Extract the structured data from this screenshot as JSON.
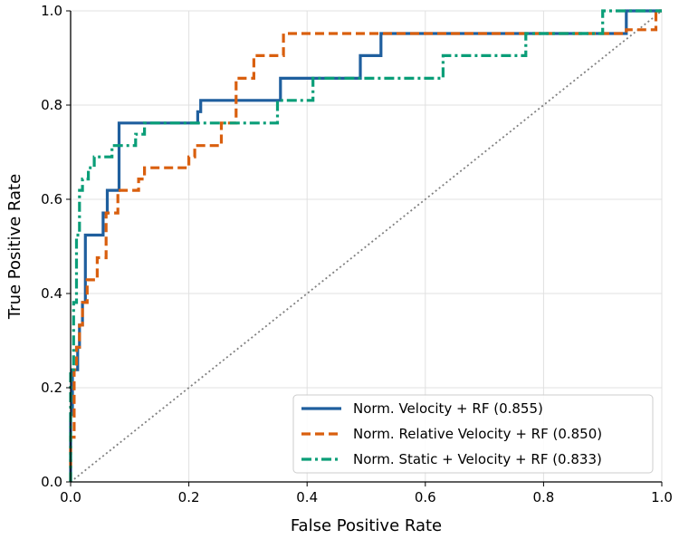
{
  "chart_data": {
    "type": "line",
    "xlabel": "False Positive Rate",
    "ylabel": "True Positive Rate",
    "xlim": [
      0,
      1
    ],
    "ylim": [
      0,
      1
    ],
    "xticks": [
      "0.0",
      "0.2",
      "0.4",
      "0.6",
      "0.8",
      "1.0"
    ],
    "yticks": [
      "0.0",
      "0.2",
      "0.4",
      "0.6",
      "0.8",
      "1.0"
    ],
    "grid": true,
    "legend_position": "bottom-right",
    "diagonal": {
      "x": [
        0,
        1
      ],
      "y": [
        0,
        1
      ],
      "color": "#808080",
      "style": "dotted"
    },
    "series": [
      {
        "name": "Norm. Velocity + RF (0.855)",
        "color": "#1f5f9e",
        "style": "solid",
        "x": [
          0,
          0,
          0.003,
          0.003,
          0.012,
          0.012,
          0.015,
          0.015,
          0.02,
          0.02,
          0.025,
          0.025,
          0.055,
          0.055,
          0.062,
          0.062,
          0.082,
          0.082,
          0.215,
          0.215,
          0.22,
          0.22,
          0.355,
          0.355,
          0.49,
          0.49,
          0.525,
          0.525,
          0.94,
          0.94,
          1.0
        ],
        "y": [
          0,
          0.143,
          0.143,
          0.238,
          0.238,
          0.286,
          0.286,
          0.333,
          0.333,
          0.381,
          0.381,
          0.524,
          0.524,
          0.571,
          0.571,
          0.619,
          0.619,
          0.762,
          0.762,
          0.786,
          0.786,
          0.81,
          0.81,
          0.857,
          0.857,
          0.905,
          0.905,
          0.952,
          0.952,
          1.0,
          1.0
        ]
      },
      {
        "name": "Norm. Relative Velocity + RF (0.850)",
        "color": "#d95f0e",
        "style": "dashed",
        "x": [
          0,
          0,
          0.006,
          0.006,
          0.01,
          0.01,
          0.015,
          0.015,
          0.02,
          0.02,
          0.028,
          0.028,
          0.045,
          0.045,
          0.06,
          0.06,
          0.08,
          0.08,
          0.115,
          0.115,
          0.125,
          0.125,
          0.2,
          0.2,
          0.21,
          0.21,
          0.255,
          0.255,
          0.28,
          0.28,
          0.31,
          0.31,
          0.36,
          0.36,
          0.94,
          0.94,
          0.99,
          0.99,
          1.0
        ],
        "y": [
          0,
          0.095,
          0.095,
          0.238,
          0.238,
          0.286,
          0.286,
          0.333,
          0.333,
          0.381,
          0.381,
          0.429,
          0.429,
          0.476,
          0.476,
          0.571,
          0.571,
          0.619,
          0.619,
          0.643,
          0.643,
          0.667,
          0.667,
          0.69,
          0.69,
          0.714,
          0.714,
          0.762,
          0.762,
          0.857,
          0.857,
          0.905,
          0.905,
          0.952,
          0.952,
          0.96,
          0.96,
          1.0,
          1.0
        ]
      },
      {
        "name": "Norm. Static + Velocity + RF (0.833)",
        "color": "#0a9e78",
        "style": "dashdot",
        "x": [
          0,
          0,
          0.005,
          0.005,
          0.01,
          0.01,
          0.015,
          0.015,
          0.02,
          0.02,
          0.03,
          0.03,
          0.04,
          0.04,
          0.07,
          0.07,
          0.11,
          0.11,
          0.125,
          0.125,
          0.35,
          0.35,
          0.41,
          0.41,
          0.63,
          0.63,
          0.77,
          0.77,
          0.9,
          0.9,
          0.94,
          0.94,
          1.0
        ],
        "y": [
          0,
          0.238,
          0.238,
          0.381,
          0.381,
          0.524,
          0.524,
          0.619,
          0.619,
          0.643,
          0.643,
          0.667,
          0.667,
          0.69,
          0.69,
          0.714,
          0.714,
          0.738,
          0.738,
          0.762,
          0.762,
          0.81,
          0.81,
          0.857,
          0.857,
          0.905,
          0.905,
          0.952,
          0.952,
          1.0,
          1.0,
          1.0,
          1.0
        ]
      }
    ]
  }
}
